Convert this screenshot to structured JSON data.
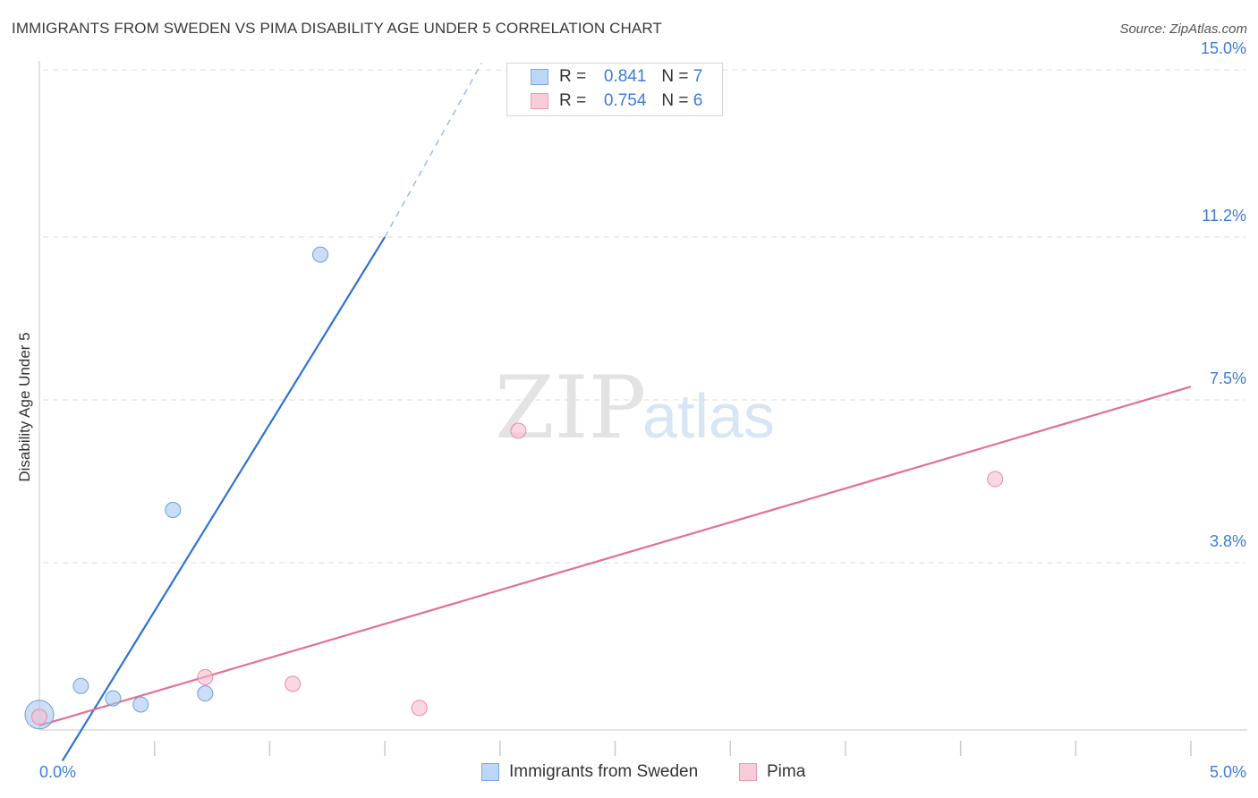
{
  "chart_data": {
    "type": "scatter",
    "title": "IMMIGRANTS FROM SWEDEN VS PIMA DISABILITY AGE UNDER 5 CORRELATION CHART",
    "source": "Source: ZipAtlas.com",
    "xlabel": "",
    "ylabel": "Disability Age Under 5",
    "xlim": [
      0,
      5.0
    ],
    "ylim": [
      0,
      15.0
    ],
    "x_tick_labels": [
      "0.0%",
      "5.0%"
    ],
    "y_ticks": [
      3.8,
      7.5,
      11.2,
      15.0
    ],
    "y_tick_labels": [
      "3.8%",
      "7.5%",
      "11.2%",
      "15.0%"
    ],
    "grid": true,
    "watermark": {
      "zip": "ZIP",
      "atlas": "atlas"
    },
    "legend": {
      "rows": [
        {
          "r_label": "R =",
          "r_value": "0.841",
          "n_label": "N =",
          "n_value": "7"
        },
        {
          "r_label": "R =",
          "r_value": "0.754",
          "n_label": "N =",
          "n_value": "6"
        }
      ]
    },
    "series": [
      {
        "name": "Immigrants from Sweden",
        "color": "#a9c8f0",
        "edge": "#6a9ee0",
        "line_color": "#2f72d0",
        "points": [
          {
            "x": 0.0,
            "y": 0.35,
            "big": true
          },
          {
            "x": 0.18,
            "y": 1.0
          },
          {
            "x": 0.32,
            "y": 0.72
          },
          {
            "x": 0.44,
            "y": 0.58
          },
          {
            "x": 0.58,
            "y": 5.0
          },
          {
            "x": 0.72,
            "y": 0.83
          },
          {
            "x": 1.22,
            "y": 10.8
          }
        ],
        "trend": {
          "x0": 0.1,
          "y0": -0.7,
          "x1": 1.5,
          "y1": 11.2,
          "dash_x1": 1.92,
          "dash_y1": 15.15
        }
      },
      {
        "name": "Pima",
        "color": "#f6bccd",
        "edge": "#e88aa8",
        "line_color": "#e46f95",
        "points": [
          {
            "x": 0.0,
            "y": 0.3
          },
          {
            "x": 0.72,
            "y": 1.2
          },
          {
            "x": 1.1,
            "y": 1.05
          },
          {
            "x": 1.65,
            "y": 0.5
          },
          {
            "x": 2.08,
            "y": 6.8
          },
          {
            "x": 4.15,
            "y": 5.7
          }
        ],
        "trend": {
          "x0": 0.0,
          "y0": 0.1,
          "x1": 5.0,
          "y1": 7.8
        }
      }
    ]
  }
}
